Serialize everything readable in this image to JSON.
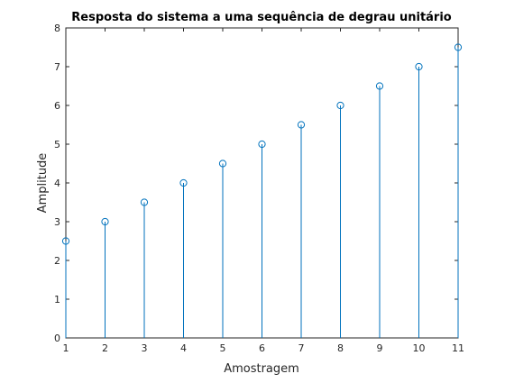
{
  "chart_data": {
    "type": "stem",
    "title": "Resposta do sistema a uma sequência de degrau unitário",
    "xlabel": "Amostragem",
    "ylabel": "Amplitude",
    "xlim": [
      1,
      11
    ],
    "ylim": [
      0,
      8
    ],
    "xticks": [
      "1",
      "2",
      "3",
      "4",
      "5",
      "6",
      "7",
      "8",
      "9",
      "10",
      "11"
    ],
    "yticks": [
      "0",
      "1",
      "2",
      "3",
      "4",
      "5",
      "6",
      "7",
      "8"
    ],
    "grid": false,
    "series": [
      {
        "x": [
          1,
          2,
          3,
          4,
          5,
          6,
          7,
          8,
          9,
          10,
          11
        ],
        "values": [
          2.5,
          3,
          3.5,
          4,
          4.5,
          5,
          5.5,
          6,
          6.5,
          7,
          7.5
        ],
        "marker": "circle",
        "color": "#0072BD"
      }
    ]
  }
}
